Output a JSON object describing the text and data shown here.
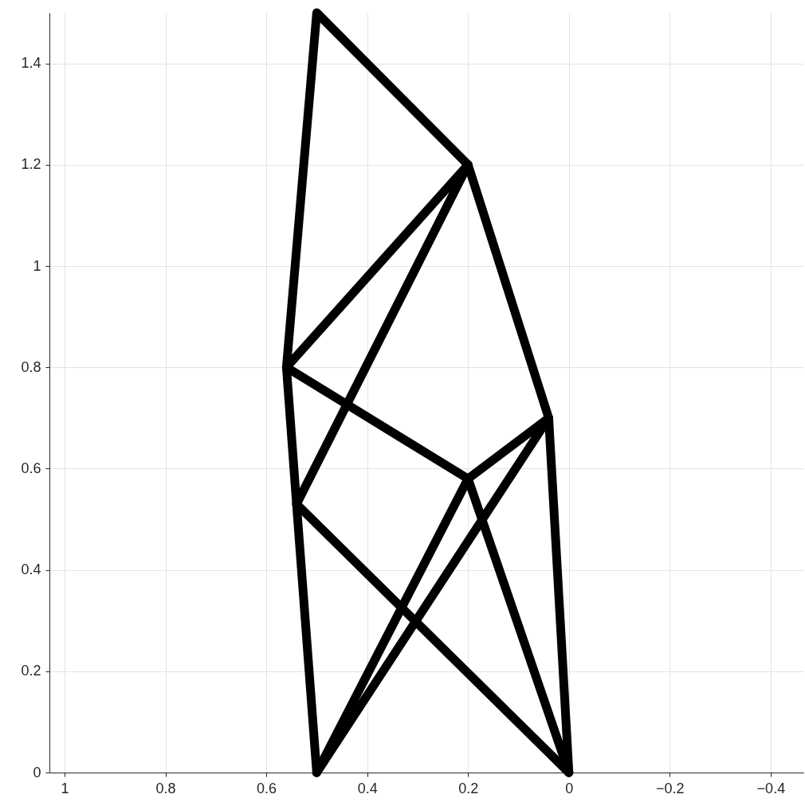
{
  "chart_data": {
    "type": "line",
    "xlim": [
      1.03,
      -0.465
    ],
    "ylim": [
      0,
      1.5
    ],
    "xticks": [
      1,
      0.8,
      0.6,
      0.4,
      0.2,
      0,
      -0.2,
      -0.4
    ],
    "yticks": [
      0,
      0.2,
      0.4,
      0.6,
      0.8,
      1,
      1.2,
      1.4
    ],
    "grid": true,
    "line_style": "solid",
    "series": [
      {
        "color": "#000000",
        "x": [
          0.5,
          0.54,
          0.56,
          0.5,
          0.2,
          0.04,
          0
        ],
        "values": [
          0,
          0.53,
          0.8,
          1.5,
          1.2,
          0.7,
          0
        ]
      },
      {
        "color": "#000000",
        "x": [
          0.2,
          0.56
        ],
        "values": [
          1.2,
          0.8
        ]
      },
      {
        "color": "#000000",
        "x": [
          0.2,
          0.54
        ],
        "values": [
          1.2,
          0.53
        ]
      },
      {
        "color": "#000000",
        "x": [
          0.56,
          0.2
        ],
        "values": [
          0.8,
          0.58
        ]
      },
      {
        "color": "#000000",
        "x": [
          0.5,
          0.2,
          0.04
        ],
        "values": [
          0,
          0.58,
          0.7
        ]
      },
      {
        "color": "#000000",
        "x": [
          0.5,
          0.04
        ],
        "values": [
          0,
          0.7
        ]
      },
      {
        "color": "#000000",
        "x": [
          0.2,
          0
        ],
        "values": [
          0.58,
          0
        ]
      },
      {
        "color": "#000000",
        "x": [
          0.54,
          0
        ],
        "values": [
          0.53,
          0
        ]
      }
    ]
  }
}
